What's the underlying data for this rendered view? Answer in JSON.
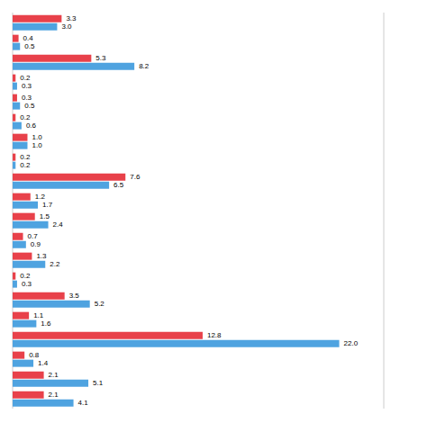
{
  "chart_data": {
    "type": "bar",
    "orientation": "horizontal",
    "categories": [
      null,
      null,
      null,
      null,
      null,
      null,
      null,
      null,
      null,
      null,
      null,
      null,
      null,
      null,
      null,
      null,
      null,
      null,
      null,
      null
    ],
    "series": [
      {
        "color": "#e8414a",
        "values": [
          3.3,
          0.4,
          5.3,
          0.2,
          0.3,
          0.2,
          1.0,
          0.2,
          7.6,
          1.2,
          1.5,
          0.7,
          1.3,
          0.2,
          3.5,
          1.1,
          12.8,
          0.8,
          2.1,
          2.1
        ],
        "value_labels": [
          "3.3",
          "0.4",
          "5.3",
          "0.2",
          "0.3",
          "0.2",
          "1.0",
          "0.2",
          "7.6",
          "1.2",
          "1.5",
          "0.7",
          "1.3",
          "0.2",
          "3.5",
          "1.1",
          "12.8",
          "0.8",
          "2.1",
          "2.1"
        ]
      },
      {
        "color": "#4fa3e0",
        "values": [
          3.0,
          0.5,
          8.2,
          0.3,
          0.5,
          0.6,
          1.0,
          0.2,
          6.5,
          1.7,
          2.4,
          0.9,
          2.2,
          0.3,
          5.2,
          1.6,
          22.0,
          1.4,
          5.1,
          4.1
        ],
        "value_labels": [
          "3.0",
          "0.5",
          "8.2",
          "0.3",
          "0.5",
          "0.6",
          "1.0",
          "0.2",
          "6.5",
          "1.7",
          "2.4",
          "0.9",
          "2.2",
          "0.3",
          "5.2",
          "1.6",
          "22.0",
          "1.4",
          "5.1",
          "4.1"
        ]
      }
    ],
    "xlim": [
      0,
      25
    ],
    "xticks": [
      0,
      5,
      10,
      15,
      20,
      25
    ],
    "grid": true,
    "data_labels": true,
    "tick_labels": false
  }
}
